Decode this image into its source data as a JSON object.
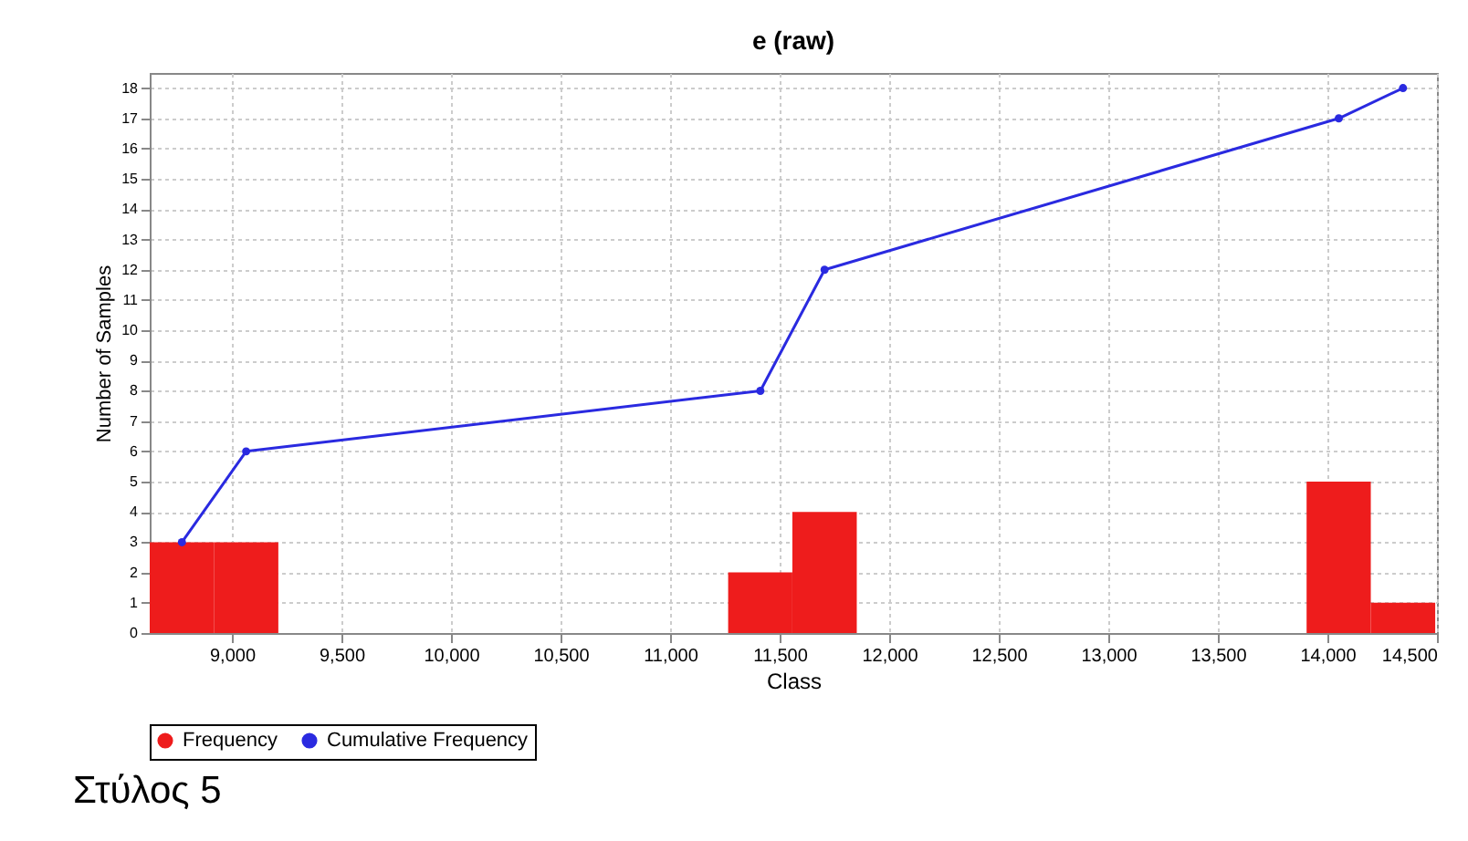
{
  "chart_data": {
    "type": "histogram",
    "title": "e (raw)",
    "xlabel": "Class",
    "ylabel": "Number of Samples",
    "bins": [
      8625,
      8918,
      9212,
      9505,
      9798,
      10092,
      10385,
      10678,
      10972,
      11265,
      11558,
      11852,
      12145,
      12438,
      12732,
      13025,
      13318,
      13612,
      13905,
      14198,
      14492
    ],
    "series": [
      {
        "name": "Frequency",
        "color": "#ee1c1c",
        "values": [
          3,
          3,
          0,
          0,
          0,
          0,
          0,
          0,
          0,
          2,
          4,
          0,
          0,
          0,
          0,
          0,
          0,
          0,
          5,
          1
        ]
      },
      {
        "name": "Cumulative Frequency",
        "type": "line",
        "color": "#2a2ae0",
        "x": [
          8772,
          9065,
          11412,
          11705,
          14052,
          14345
        ],
        "values": [
          3,
          6,
          8,
          12,
          17,
          18
        ]
      }
    ],
    "xlim": [
      8625,
      14500
    ],
    "xticks": [
      {
        "value": 9000,
        "label": "9,000"
      },
      {
        "value": 9500,
        "label": "9,500"
      },
      {
        "value": 10000,
        "label": "10,000"
      },
      {
        "value": 10500,
        "label": "10,500"
      },
      {
        "value": 11000,
        "label": "11,000"
      },
      {
        "value": 11500,
        "label": "11,500"
      },
      {
        "value": 12000,
        "label": "12,000"
      },
      {
        "value": 12500,
        "label": "12,500"
      },
      {
        "value": 13000,
        "label": "13,000"
      },
      {
        "value": 13500,
        "label": "13,500"
      },
      {
        "value": 14000,
        "label": "14,000"
      },
      {
        "value": 14500,
        "label": "14,500"
      }
    ],
    "ylim": [
      0,
      18.5
    ],
    "yticks": [
      0,
      1,
      2,
      3,
      4,
      5,
      6,
      7,
      8,
      9,
      10,
      11,
      12,
      13,
      14,
      15,
      16,
      17,
      18
    ],
    "grid": true,
    "legend": "bottom",
    "marker": "circle",
    "line_style": "solid",
    "annotations": [
      "Στύλος 5"
    ]
  }
}
